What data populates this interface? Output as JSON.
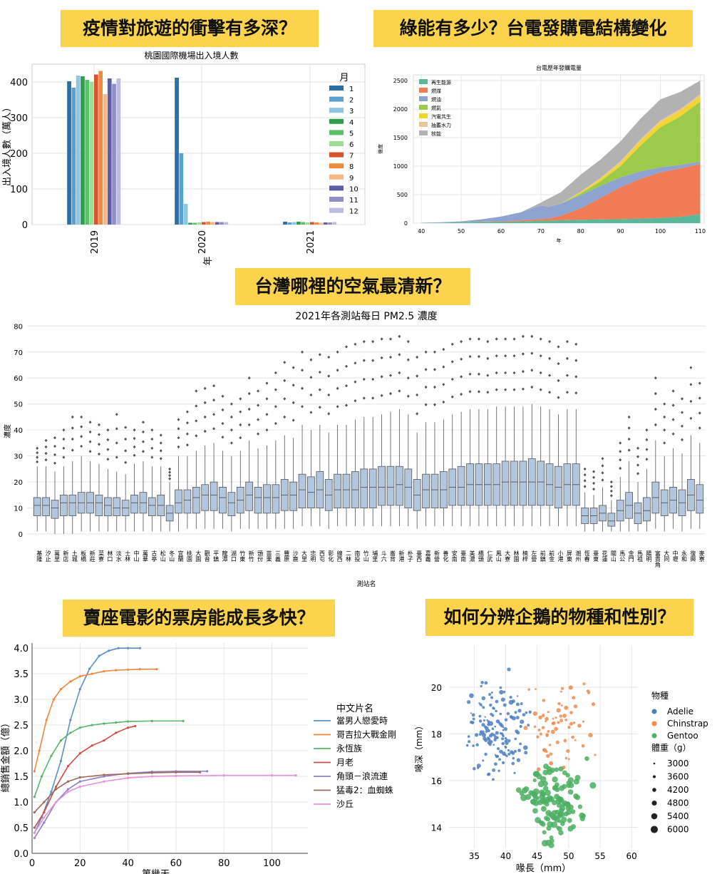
{
  "banners": {
    "b1": "疫情對旅遊的衝擊有多深？",
    "b2": "綠能有多少？台電發購電結構變化",
    "b3": "台灣哪裡的空氣最清新？",
    "b4": "賣座電影的票房能成長多快？",
    "b5": "如何分辨企鵝的物種和性別？"
  },
  "chart_data": [
    {
      "id": "airport",
      "type": "bar",
      "title": "桃園國際機場出入境人數",
      "xlabel": "年",
      "ylabel": "出入境人數（萬人）",
      "categories": [
        "2019",
        "2020",
        "2021"
      ],
      "ylim": [
        0,
        450
      ],
      "yticks": [
        0,
        100,
        200,
        300,
        400
      ],
      "legend_title": "月",
      "legend_position": "right",
      "series": [
        {
          "name": "1",
          "color": "#2c6da4",
          "values": [
            402,
            412,
            8
          ]
        },
        {
          "name": "2",
          "color": "#5aa0cc",
          "values": [
            384,
            200,
            6
          ]
        },
        {
          "name": "3",
          "color": "#90c5e0",
          "values": [
            418,
            58,
            7
          ]
        },
        {
          "name": "4",
          "color": "#2e9e4a",
          "values": [
            416,
            5,
            8
          ]
        },
        {
          "name": "5",
          "color": "#5cc06a",
          "values": [
            406,
            5,
            7
          ]
        },
        {
          "name": "6",
          "color": "#9fdc96",
          "values": [
            401,
            6,
            6
          ]
        },
        {
          "name": "7",
          "color": "#d8542c",
          "values": [
            421,
            7,
            7
          ]
        },
        {
          "name": "8",
          "color": "#ee8a3e",
          "values": [
            431,
            8,
            6
          ]
        },
        {
          "name": "9",
          "color": "#f6b883",
          "values": [
            366,
            7,
            5
          ]
        },
        {
          "name": "10",
          "color": "#5c5ea8",
          "values": [
            410,
            7,
            6
          ]
        },
        {
          "name": "11",
          "color": "#8f8fc6",
          "values": [
            395,
            7,
            6
          ]
        },
        {
          "name": "12",
          "color": "#bcbde0",
          "values": [
            410,
            7,
            7
          ]
        }
      ]
    },
    {
      "id": "power",
      "type": "area",
      "title": "台電歷年發購電量",
      "xlabel": "年",
      "ylabel": "億度",
      "x": [
        40,
        45,
        50,
        55,
        60,
        65,
        70,
        72,
        75,
        80,
        85,
        90,
        95,
        100,
        105,
        110
      ],
      "xlim": [
        38,
        111
      ],
      "ylim": [
        0,
        2600
      ],
      "xticks": [
        40,
        50,
        60,
        70,
        80,
        90,
        100,
        110
      ],
      "yticks": [
        0,
        500,
        1000,
        1500,
        2000,
        2500
      ],
      "legend_position": "top-left",
      "series": [
        {
          "name": "再生能源",
          "color": "#5ab89a",
          "values": [
            5,
            10,
            15,
            20,
            25,
            30,
            40,
            45,
            50,
            60,
            65,
            70,
            80,
            90,
            110,
            160
          ]
        },
        {
          "name": "燃煤",
          "color": "#f07c55",
          "values": [
            0,
            0,
            2,
            5,
            10,
            20,
            30,
            40,
            80,
            200,
            380,
            560,
            700,
            800,
            850,
            880
          ]
        },
        {
          "name": "燃油",
          "color": "#8ea3cf",
          "values": [
            2,
            6,
            15,
            40,
            80,
            140,
            240,
            200,
            210,
            230,
            210,
            170,
            130,
            90,
            60,
            40
          ]
        },
        {
          "name": "燃氣",
          "color": "#9ccb4c",
          "values": [
            0,
            0,
            0,
            0,
            0,
            0,
            0,
            0,
            0,
            30,
            80,
            200,
            450,
            700,
            850,
            1050
          ]
        },
        {
          "name": "汽電共生",
          "color": "#f2d533",
          "values": [
            0,
            0,
            0,
            0,
            0,
            0,
            0,
            0,
            0,
            20,
            40,
            60,
            80,
            90,
            100,
            100
          ]
        },
        {
          "name": "抽蓄水力",
          "color": "#e7c795",
          "values": [
            0,
            0,
            0,
            0,
            0,
            0,
            0,
            0,
            0,
            10,
            20,
            25,
            30,
            30,
            30,
            30
          ]
        },
        {
          "name": "核能",
          "color": "#b2b2b2",
          "values": [
            0,
            0,
            0,
            0,
            0,
            0,
            50,
            150,
            200,
            300,
            320,
            350,
            360,
            370,
            300,
            240
          ]
        }
      ]
    },
    {
      "id": "pm25",
      "type": "box",
      "title": "2021年各測站每日 PM2.5 濃度",
      "xlabel": "測站名",
      "ylabel": "濃度",
      "ylim": [
        -3,
        82
      ],
      "yticks": [
        0,
        10,
        20,
        30,
        40,
        50,
        60,
        70,
        80
      ],
      "stations": [
        "基隆",
        "汐止",
        "萬里",
        "新店",
        "土城",
        "板橋",
        "新莊",
        "菜寮",
        "林口",
        "淡水",
        "士林",
        "中山",
        "萬華",
        "古亭",
        "松山",
        "冬山",
        "宜蘭",
        "桃園",
        "大園",
        "觀音",
        "平鎮",
        "龍潭",
        "湖口",
        "竹東",
        "新竹",
        "頭份",
        "苗栗",
        "三義",
        "豐原",
        "沙鹿",
        "大里",
        "忠明",
        "西屯",
        "彰化",
        "線西",
        "二林",
        "南投",
        "竹山",
        "埔里",
        "斗六",
        "崙背",
        "新港",
        "朴子",
        "臺西",
        "嘉義",
        "新營",
        "善化",
        "安南",
        "臺南",
        "美濃",
        "橋頭",
        "仁武",
        "鳳山",
        "大寮",
        "林園",
        "楠梓",
        "左營",
        "前鎮",
        "前金",
        "小港",
        "屏東",
        "潮州",
        "恆春",
        "臺東",
        "花蓮",
        "關山",
        "馬公",
        "金門",
        "馬祖",
        "陽明",
        "富貴角",
        "大同",
        "中壢",
        "永和",
        "復興",
        "麥寮"
      ],
      "boxes": [
        [
          1,
          7,
          11,
          14,
          26,
          33
        ],
        [
          1,
          7,
          11,
          14,
          26,
          36
        ],
        [
          0,
          6,
          10,
          13,
          24,
          37
        ],
        [
          0,
          7,
          12,
          15,
          26,
          40
        ],
        [
          0,
          7,
          12,
          15,
          28,
          45
        ],
        [
          1,
          8,
          12,
          16,
          30,
          45
        ],
        [
          1,
          8,
          12,
          16,
          28,
          43
        ],
        [
          1,
          7,
          12,
          15,
          27,
          42
        ],
        [
          1,
          7,
          11,
          14,
          25,
          40
        ],
        [
          1,
          7,
          10,
          14,
          24,
          46
        ],
        [
          1,
          7,
          10,
          13,
          23,
          41
        ],
        [
          1,
          8,
          12,
          15,
          27,
          40
        ],
        [
          1,
          8,
          12,
          16,
          28,
          43
        ],
        [
          1,
          7,
          11,
          14,
          26,
          40
        ],
        [
          1,
          7,
          11,
          15,
          26,
          38
        ],
        [
          1,
          5,
          8,
          11,
          20,
          25
        ],
        [
          1,
          8,
          12,
          17,
          30,
          44
        ],
        [
          2,
          8,
          13,
          17,
          30,
          47
        ],
        [
          2,
          8,
          14,
          18,
          32,
          55
        ],
        [
          2,
          9,
          15,
          19,
          34,
          56
        ],
        [
          2,
          9,
          15,
          20,
          35,
          57
        ],
        [
          2,
          8,
          14,
          18,
          32,
          53
        ],
        [
          1,
          7,
          12,
          16,
          30,
          50
        ],
        [
          2,
          8,
          13,
          18,
          32,
          52
        ],
        [
          2,
          9,
          15,
          20,
          36,
          60
        ],
        [
          2,
          8,
          14,
          18,
          33,
          55
        ],
        [
          2,
          8,
          14,
          19,
          34,
          58
        ],
        [
          2,
          8,
          14,
          19,
          36,
          62
        ],
        [
          2,
          9,
          15,
          21,
          38,
          66
        ],
        [
          2,
          9,
          15,
          20,
          37,
          64
        ],
        [
          3,
          10,
          17,
          23,
          42,
          70
        ],
        [
          3,
          10,
          16,
          22,
          40,
          67
        ],
        [
          3,
          10,
          17,
          24,
          42,
          69
        ],
        [
          2,
          9,
          15,
          21,
          39,
          68
        ],
        [
          3,
          10,
          17,
          23,
          42,
          70
        ],
        [
          3,
          10,
          17,
          23,
          42,
          72
        ],
        [
          3,
          10,
          17,
          24,
          44,
          73
        ],
        [
          3,
          10,
          18,
          25,
          45,
          74
        ],
        [
          3,
          10,
          18,
          25,
          45,
          74
        ],
        [
          3,
          11,
          18,
          26,
          46,
          75
        ],
        [
          3,
          11,
          18,
          26,
          47,
          75
        ],
        [
          3,
          11,
          19,
          26,
          48,
          76
        ],
        [
          3,
          10,
          18,
          25,
          46,
          74
        ],
        [
          2,
          9,
          15,
          21,
          39,
          68
        ],
        [
          3,
          10,
          17,
          23,
          43,
          70
        ],
        [
          3,
          10,
          17,
          23,
          43,
          70
        ],
        [
          3,
          10,
          17,
          24,
          44,
          71
        ],
        [
          3,
          11,
          18,
          25,
          46,
          73
        ],
        [
          3,
          11,
          18,
          26,
          47,
          74
        ],
        [
          3,
          11,
          19,
          27,
          48,
          75
        ],
        [
          3,
          11,
          19,
          27,
          48,
          75
        ],
        [
          3,
          11,
          19,
          27,
          48,
          74
        ],
        [
          3,
          11,
          19,
          27,
          49,
          75
        ],
        [
          3,
          11,
          20,
          28,
          49,
          75
        ],
        [
          3,
          11,
          20,
          28,
          49,
          75
        ],
        [
          3,
          11,
          20,
          28,
          49,
          76
        ],
        [
          3,
          11,
          20,
          29,
          50,
          76
        ],
        [
          3,
          11,
          20,
          28,
          49,
          75
        ],
        [
          3,
          11,
          19,
          27,
          48,
          74
        ],
        [
          3,
          10,
          18,
          26,
          46,
          72
        ],
        [
          3,
          11,
          19,
          27,
          48,
          74
        ],
        [
          3,
          11,
          19,
          27,
          48,
          73
        ],
        [
          1,
          4,
          7,
          10,
          16,
          25
        ],
        [
          1,
          4,
          7,
          10,
          15,
          24
        ],
        [
          1,
          5,
          8,
          11,
          18,
          29
        ],
        [
          1,
          3,
          5,
          8,
          13,
          20
        ],
        [
          1,
          5,
          9,
          13,
          22,
          35
        ],
        [
          1,
          6,
          11,
          16,
          28,
          45
        ],
        [
          1,
          4,
          8,
          12,
          20,
          33
        ],
        [
          1,
          5,
          9,
          14,
          25,
          40
        ],
        [
          2,
          8,
          14,
          20,
          36,
          60
        ],
        [
          1,
          7,
          12,
          17,
          30,
          50
        ],
        [
          2,
          8,
          13,
          18,
          33,
          55
        ],
        [
          1,
          7,
          12,
          17,
          31,
          52
        ],
        [
          2,
          9,
          15,
          21,
          38,
          64
        ],
        [
          2,
          8,
          13,
          19,
          35,
          58
        ]
      ]
    },
    {
      "id": "boxoffice",
      "type": "line",
      "xlabel": "第幾天",
      "ylabel": "總銷售金額（億）",
      "xlim": [
        0,
        115
      ],
      "ylim": [
        0,
        4.1
      ],
      "xticks": [
        0,
        20,
        40,
        60,
        80,
        100
      ],
      "yticks": [
        0.0,
        0.5,
        1.0,
        1.5,
        2.0,
        2.5,
        3.0,
        3.5,
        4.0
      ],
      "legend_title": "中文片名",
      "legend_position": "right",
      "series": [
        {
          "name": "當男人戀愛時",
          "color": "#5a8fc8",
          "x": [
            1,
            4,
            8,
            12,
            16,
            20,
            24,
            28,
            32,
            36,
            40,
            45
          ],
          "y": [
            0.4,
            0.7,
            1.2,
            1.8,
            2.6,
            3.2,
            3.6,
            3.85,
            3.95,
            4.0,
            4.0,
            4.0
          ]
        },
        {
          "name": "哥吉拉大戰金剛",
          "color": "#f0853d",
          "x": [
            1,
            3,
            6,
            9,
            12,
            16,
            20,
            25,
            30,
            35,
            40,
            45,
            52
          ],
          "y": [
            1.6,
            2.0,
            2.6,
            3.0,
            3.2,
            3.35,
            3.45,
            3.5,
            3.55,
            3.57,
            3.58,
            3.59,
            3.59
          ]
        },
        {
          "name": "永恆族",
          "color": "#58b56a",
          "x": [
            1,
            4,
            8,
            12,
            16,
            20,
            25,
            30,
            35,
            40,
            50,
            63
          ],
          "y": [
            1.1,
            1.5,
            1.9,
            2.2,
            2.35,
            2.45,
            2.5,
            2.53,
            2.55,
            2.57,
            2.58,
            2.58
          ]
        },
        {
          "name": "月老",
          "color": "#cc4a4a",
          "x": [
            1,
            5,
            10,
            15,
            20,
            25,
            30,
            35,
            40,
            43
          ],
          "y": [
            0.5,
            0.8,
            1.3,
            1.7,
            1.95,
            2.1,
            2.2,
            2.35,
            2.45,
            2.48
          ]
        },
        {
          "name": "角頭－浪流連",
          "color": "#8f7fc6",
          "x": [
            1,
            5,
            10,
            15,
            20,
            30,
            40,
            50,
            60,
            73
          ],
          "y": [
            0.3,
            0.6,
            1.0,
            1.25,
            1.4,
            1.5,
            1.56,
            1.59,
            1.6,
            1.6
          ]
        },
        {
          "name": "猛毒2：血蜘蛛",
          "color": "#9a6a5a",
          "x": [
            1,
            5,
            10,
            15,
            20,
            30,
            40,
            50,
            60,
            70
          ],
          "y": [
            0.8,
            1.0,
            1.25,
            1.4,
            1.48,
            1.53,
            1.55,
            1.57,
            1.58,
            1.58
          ]
        },
        {
          "name": "沙丘",
          "color": "#ea8fd8",
          "x": [
            1,
            5,
            10,
            15,
            20,
            30,
            40,
            50,
            60,
            80,
            100,
            110
          ],
          "y": [
            0.4,
            0.7,
            1.0,
            1.2,
            1.3,
            1.4,
            1.47,
            1.5,
            1.51,
            1.52,
            1.52,
            1.52
          ]
        }
      ]
    },
    {
      "id": "penguins",
      "type": "scatter",
      "xlabel": "喙長（mm）",
      "ylabel": "喙深（mm）",
      "xlim": [
        31,
        61
      ],
      "ylim": [
        13.1,
        21.8
      ],
      "xticks": [
        35,
        40,
        45,
        50,
        55,
        60
      ],
      "yticks": [
        14,
        16,
        18,
        20
      ],
      "legend_title": "物種",
      "size_legend_title": "體重（g）",
      "legend_position": "right",
      "species": [
        {
          "name": "Adelie",
          "color": "#4c7fbf"
        },
        {
          "name": "Chinstrap",
          "color": "#ee8a4f"
        },
        {
          "name": "Gentoo",
          "color": "#4caf63"
        }
      ],
      "sizes": [
        "3000",
        "3600",
        "4200",
        "4800",
        "5400",
        "6000"
      ]
    }
  ]
}
